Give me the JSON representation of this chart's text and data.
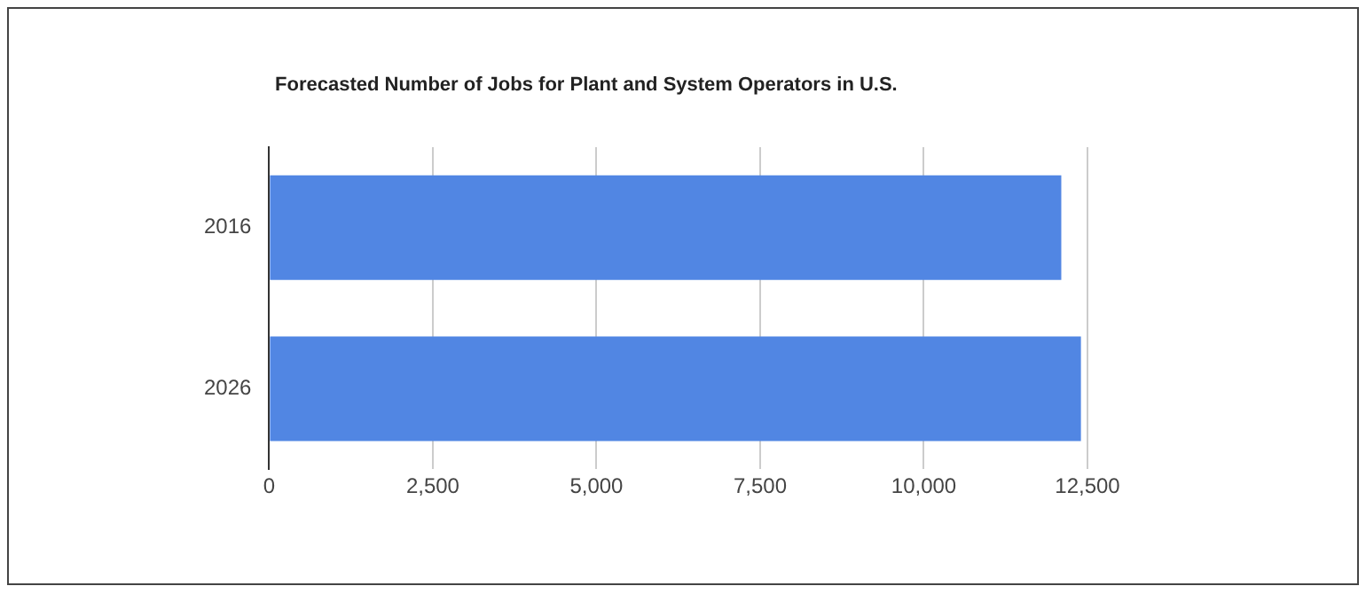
{
  "chart_data": {
    "type": "bar",
    "orientation": "horizontal",
    "title": "Forecasted Number of Jobs for Plant and System Operators in U.S.",
    "categories": [
      "2016",
      "2026"
    ],
    "values": [
      12100,
      12400
    ],
    "color": "#5186e3",
    "xlim": [
      0,
      12500
    ],
    "xticks": [
      {
        "value": 0,
        "label": "0"
      },
      {
        "value": 2500,
        "label": "2,500"
      },
      {
        "value": 5000,
        "label": "5,000"
      },
      {
        "value": 7500,
        "label": "7,500"
      },
      {
        "value": 10000,
        "label": "10,000"
      },
      {
        "value": 12500,
        "label": "12,500"
      }
    ],
    "grid": "x",
    "legend": false
  }
}
